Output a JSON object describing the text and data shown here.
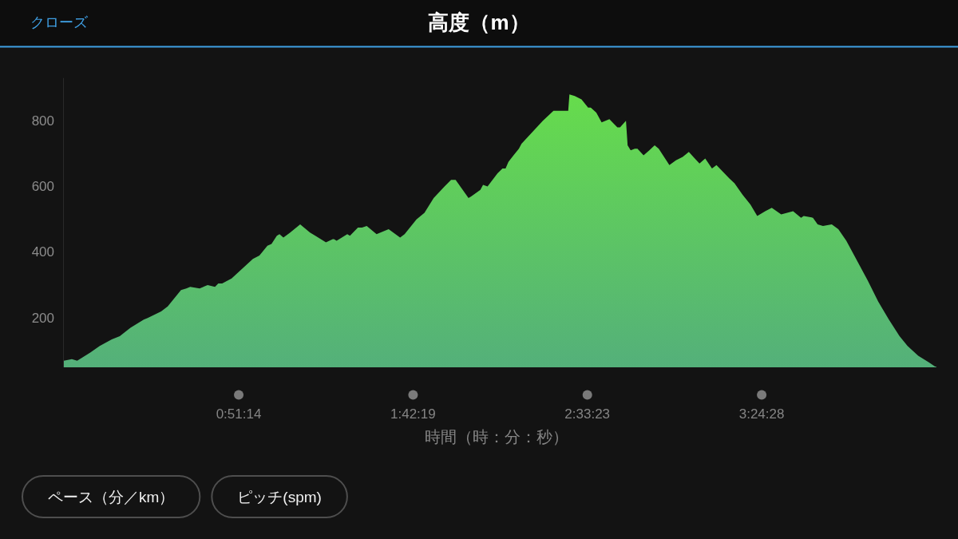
{
  "chart_data": {
    "type": "area",
    "title": "高度（m）",
    "xlabel": "時間（時：分：秒）",
    "annotations": [
      "クローズ",
      "ペース（分／km）",
      "ピッチ(spm)"
    ],
    "x": [
      0,
      0.039,
      0.065,
      0.09,
      0.129,
      0.175,
      0.234,
      0.273,
      0.325,
      0.39,
      0.409,
      0.475,
      0.507,
      0.572,
      0.598,
      0.617,
      0.663,
      0.702,
      0.738,
      0.754,
      0.773,
      0.819,
      0.871,
      0.923,
      0.955,
      0.994,
      1.014,
      1.04,
      1.053,
      1.072,
      1.105,
      1.154,
      1.202,
      1.228,
      1.28,
      1.313,
      1.319,
      1.332,
      1.384,
      1.397,
      1.436,
      1.456,
      1.479,
      1.527,
      1.586,
      1.642,
      1.664,
      1.722,
      1.761,
      1.806,
      1.859,
      1.891,
      1.913,
      1.976,
      1.989,
      2.034,
      2.047,
      2.069,
      2.118,
      2.142,
      2.157,
      2.171,
      2.196,
      2.222,
      2.235,
      2.339,
      2.391,
      2.463,
      2.469,
      2.495,
      2.528,
      2.56,
      2.573,
      2.6,
      2.626,
      2.664,
      2.703,
      2.716,
      2.745,
      2.753,
      2.768,
      2.788,
      2.801,
      2.831,
      2.859,
      2.885,
      2.905,
      2.957,
      2.989,
      3.022,
      3.052,
      3.074,
      3.104,
      3.132,
      3.165,
      3.187,
      3.249,
      3.275,
      3.314,
      3.353,
      3.386,
      3.425,
      3.457,
      3.503,
      3.561,
      3.6,
      3.613,
      3.658,
      3.681,
      3.707,
      3.75,
      3.782,
      3.821,
      3.873,
      3.925,
      3.977,
      4.029,
      4.081,
      4.12,
      4.172,
      4.224,
      4.26
    ],
    "values": [
      70,
      75,
      70,
      80,
      95,
      115,
      135,
      145,
      170,
      195,
      200,
      220,
      235,
      285,
      290,
      295,
      290,
      300,
      295,
      305,
      305,
      320,
      350,
      380,
      390,
      420,
      425,
      450,
      455,
      445,
      460,
      485,
      460,
      450,
      430,
      440,
      440,
      435,
      455,
      450,
      475,
      475,
      480,
      455,
      470,
      445,
      455,
      500,
      520,
      565,
      600,
      620,
      620,
      565,
      570,
      590,
      605,
      600,
      640,
      655,
      655,
      675,
      695,
      715,
      730,
      800,
      830,
      830,
      880,
      875,
      865,
      840,
      840,
      825,
      795,
      805,
      780,
      780,
      800,
      725,
      710,
      715,
      715,
      695,
      710,
      725,
      715,
      665,
      680,
      690,
      705,
      690,
      670,
      685,
      655,
      665,
      625,
      610,
      575,
      545,
      510,
      525,
      535,
      515,
      525,
      505,
      510,
      505,
      485,
      480,
      485,
      470,
      435,
      375,
      315,
      250,
      195,
      145,
      115,
      85,
      65,
      50
    ],
    "color": "#66dc4c",
    "xlim": [
      0,
      4.26
    ],
    "ylim": [
      50,
      930
    ],
    "xticks": [
      {
        "value": 0.853889,
        "label": "0:51:14"
      },
      {
        "value": 1.705278,
        "label": "1:42:19"
      },
      {
        "value": 2.556389,
        "label": "2:33:23"
      },
      {
        "value": 3.407778,
        "label": "3:24:28"
      }
    ],
    "yticks": [
      200,
      400,
      600,
      800
    ]
  }
}
